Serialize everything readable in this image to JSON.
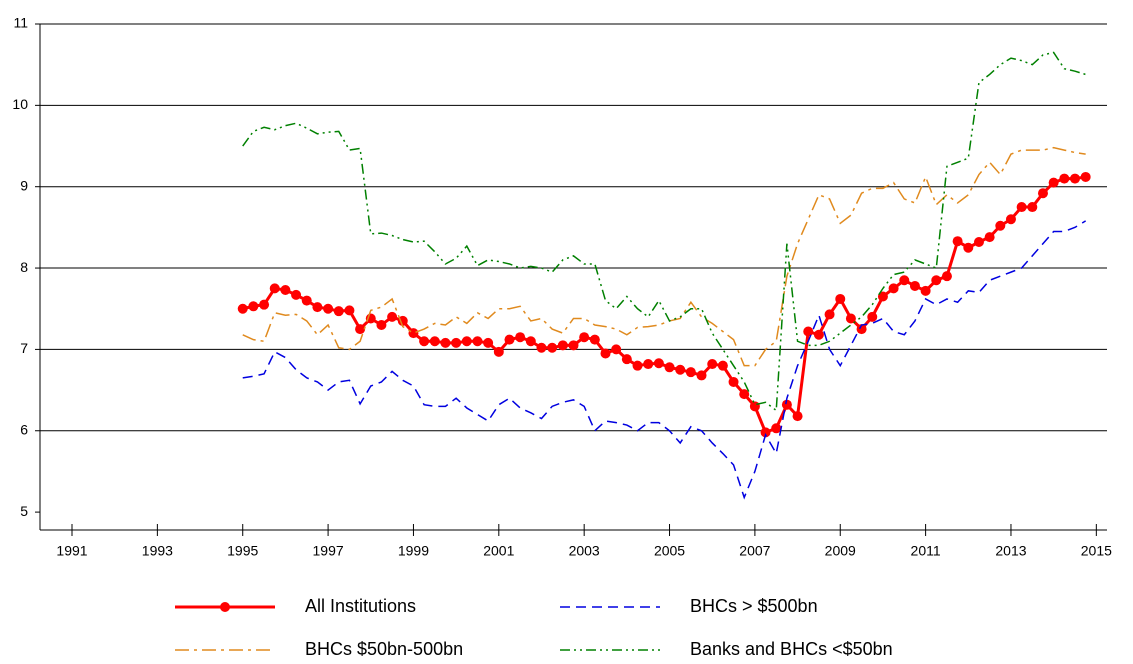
{
  "chart_data": {
    "type": "line",
    "x": [
      1995,
      1995.25,
      1995.5,
      1995.75,
      1996,
      1996.25,
      1996.5,
      1996.75,
      1997,
      1997.25,
      1997.5,
      1997.75,
      1998,
      1998.25,
      1998.5,
      1998.75,
      1999,
      1999.25,
      1999.5,
      1999.75,
      2000,
      2000.25,
      2000.5,
      2000.75,
      2001,
      2001.25,
      2001.5,
      2001.75,
      2002,
      2002.25,
      2002.5,
      2002.75,
      2003,
      2003.25,
      2003.5,
      2003.75,
      2004,
      2004.25,
      2004.5,
      2004.75,
      2005,
      2005.25,
      2005.5,
      2005.75,
      2006,
      2006.25,
      2006.5,
      2006.75,
      2007,
      2007.25,
      2007.5,
      2007.75,
      2008,
      2008.25,
      2008.5,
      2008.75,
      2009,
      2009.25,
      2009.5,
      2009.75,
      2010,
      2010.25,
      2010.5,
      2010.75,
      2011,
      2011.25,
      2011.5,
      2011.75,
      2012,
      2012.25,
      2012.5,
      2012.75,
      2013,
      2013.25,
      2013.5,
      2013.75,
      2014,
      2014.25,
      2014.5,
      2014.75
    ],
    "series": [
      {
        "name": "All Institutions",
        "color": "#ff0000",
        "line_style": "solid",
        "marker": "circle",
        "values": [
          7.5,
          7.53,
          7.55,
          7.75,
          7.73,
          7.67,
          7.6,
          7.52,
          7.5,
          7.47,
          7.48,
          7.25,
          7.38,
          7.3,
          7.4,
          7.35,
          7.2,
          7.1,
          7.1,
          7.08,
          7.08,
          7.1,
          7.1,
          7.08,
          6.97,
          7.12,
          7.15,
          7.1,
          7.02,
          7.02,
          7.05,
          7.05,
          7.15,
          7.12,
          6.95,
          7.0,
          6.88,
          6.8,
          6.82,
          6.83,
          6.78,
          6.75,
          6.72,
          6.68,
          6.82,
          6.8,
          6.6,
          6.45,
          6.3,
          5.98,
          6.03,
          6.32,
          6.18,
          7.22,
          7.18,
          7.43,
          7.62,
          7.38,
          7.25,
          7.4,
          7.65,
          7.75,
          7.85,
          7.78,
          7.72,
          7.85,
          7.9,
          8.33,
          8.25,
          8.32,
          8.38,
          8.52,
          8.6,
          8.75,
          8.75,
          8.92,
          9.05,
          9.1,
          9.1,
          9.12
        ]
      },
      {
        "name": "BHCs > $500bn",
        "color": "#0000e0",
        "line_style": "dashed",
        "values": [
          6.65,
          6.67,
          6.7,
          6.97,
          6.9,
          6.75,
          6.65,
          6.6,
          6.5,
          6.6,
          6.62,
          6.33,
          6.55,
          6.6,
          6.73,
          6.62,
          6.55,
          6.32,
          6.3,
          6.3,
          6.4,
          6.28,
          6.2,
          6.12,
          6.32,
          6.4,
          6.28,
          6.22,
          6.15,
          6.3,
          6.35,
          6.38,
          6.3,
          6.0,
          6.12,
          6.1,
          6.07,
          6.0,
          6.1,
          6.1,
          6.0,
          5.85,
          6.05,
          6.0,
          5.85,
          5.72,
          5.58,
          5.18,
          5.5,
          5.95,
          5.72,
          6.4,
          6.8,
          7.1,
          7.42,
          7.0,
          6.8,
          7.05,
          7.3,
          7.32,
          7.38,
          7.22,
          7.18,
          7.35,
          7.62,
          7.55,
          7.62,
          7.58,
          7.72,
          7.7,
          7.85,
          7.9,
          7.95,
          8.0,
          8.15,
          8.3,
          8.45,
          8.45,
          8.5,
          8.58
        ]
      },
      {
        "name": "BHCs $50bn-500bn",
        "color": "#e08a1e",
        "line_style": "dashdot",
        "values": [
          7.18,
          7.12,
          7.1,
          7.45,
          7.42,
          7.43,
          7.35,
          7.18,
          7.3,
          7.02,
          7.0,
          7.1,
          7.48,
          7.52,
          7.62,
          7.28,
          7.2,
          7.25,
          7.32,
          7.3,
          7.4,
          7.32,
          7.45,
          7.38,
          7.5,
          7.5,
          7.53,
          7.35,
          7.38,
          7.25,
          7.2,
          7.38,
          7.38,
          7.3,
          7.28,
          7.25,
          7.18,
          7.27,
          7.28,
          7.3,
          7.35,
          7.38,
          7.58,
          7.4,
          7.32,
          7.22,
          7.12,
          6.8,
          6.8,
          7.0,
          7.1,
          7.9,
          8.3,
          8.6,
          8.9,
          8.85,
          8.55,
          8.65,
          8.92,
          8.98,
          8.98,
          9.05,
          8.85,
          8.8,
          9.12,
          8.78,
          8.9,
          8.8,
          8.9,
          9.15,
          9.3,
          9.15,
          9.4,
          9.45,
          9.45,
          9.45,
          9.48,
          9.45,
          9.42,
          9.4
        ]
      },
      {
        "name": "Banks and BHCs <$50bn",
        "color": "#008000",
        "line_style": "dashdotdot",
        "values": [
          9.5,
          9.68,
          9.73,
          9.7,
          9.75,
          9.78,
          9.72,
          9.65,
          9.67,
          9.68,
          9.45,
          9.47,
          8.42,
          8.43,
          8.4,
          8.35,
          8.32,
          8.33,
          8.2,
          8.05,
          8.12,
          8.27,
          8.03,
          8.1,
          8.08,
          8.05,
          8.0,
          8.02,
          8.0,
          7.95,
          8.1,
          8.15,
          8.05,
          8.05,
          7.6,
          7.5,
          7.65,
          7.5,
          7.4,
          7.6,
          7.35,
          7.4,
          7.5,
          7.5,
          7.2,
          7.0,
          6.8,
          6.6,
          6.32,
          6.35,
          6.25,
          8.3,
          7.1,
          7.05,
          7.05,
          7.1,
          7.2,
          7.3,
          7.4,
          7.55,
          7.75,
          7.92,
          7.95,
          8.1,
          8.05,
          8.0,
          9.25,
          9.3,
          9.35,
          10.28,
          10.38,
          10.5,
          10.58,
          10.55,
          10.5,
          10.62,
          10.65,
          10.45,
          10.42,
          10.38
        ]
      }
    ],
    "xlim": [
      1990.25,
      2015.25
    ],
    "xticks": [
      1991,
      1993,
      1995,
      1997,
      1999,
      2001,
      2003,
      2005,
      2007,
      2009,
      2011,
      2013,
      2015
    ],
    "ylim": [
      4.78,
      11
    ],
    "yticks": [
      5,
      6,
      7,
      8,
      9,
      10,
      11
    ],
    "grid": true,
    "legend": "bottom"
  }
}
